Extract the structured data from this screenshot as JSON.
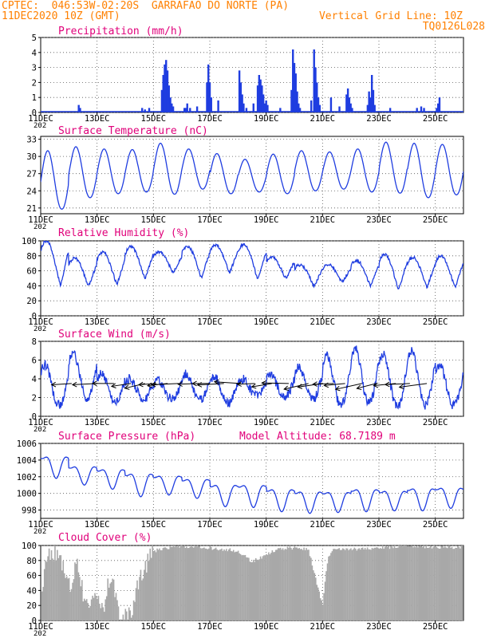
{
  "header": {
    "line1": "CPTEC:  046:53W-02:20S  GARRAFAO DO NORTE (PA)",
    "line2_left": "11DEC2020 10Z (GMT)",
    "line2_right": "Vertical Grid Line: 10Z",
    "line3_right": "TQ0126L028"
  },
  "colors": {
    "header": "#ff8000",
    "title": "#e0007a",
    "series": "#1f3de0",
    "bars": "#1f3de0",
    "cloud": "#a8a8a8",
    "grid": "#555555"
  },
  "x_axis": {
    "day_ticks": [
      "11DEC",
      "13DEC",
      "15DEC",
      "17DEC",
      "19DEC",
      "21DEC",
      "23DEC",
      "25DEC"
    ],
    "year_label": "202",
    "span_days": 15
  },
  "chart_data": [
    {
      "id": "precip",
      "type": "bar",
      "title": "Precipitation (mm/h)",
      "ylim": [
        0,
        5
      ],
      "yticks": [
        "0",
        "1",
        "2",
        "3",
        "4",
        "5"
      ],
      "x_unit": "days since 11DEC 10Z",
      "x": [
        1.35,
        1.4,
        3.6,
        3.7,
        3.85,
        4.3,
        4.35,
        4.4,
        4.45,
        4.5,
        4.55,
        4.6,
        4.65,
        4.7,
        5.1,
        5.15,
        5.2,
        5.3,
        5.55,
        5.9,
        5.95,
        6.0,
        6.05,
        6.3,
        7.05,
        7.1,
        7.15,
        7.2,
        7.3,
        7.55,
        7.7,
        7.75,
        7.8,
        7.85,
        7.9,
        7.95,
        8.0,
        8.05,
        8.5,
        8.9,
        8.95,
        9.0,
        9.05,
        9.1,
        9.15,
        9.2,
        9.6,
        9.7,
        9.75,
        9.8,
        9.85,
        9.9,
        10.3,
        10.6,
        10.85,
        10.9,
        10.95,
        11.0,
        11.05,
        11.6,
        11.65,
        11.7,
        11.75,
        11.8,
        11.85,
        12.4,
        13.35,
        13.5,
        13.6,
        14.05,
        14.1,
        14.15
      ],
      "values": [
        0.5,
        0.3,
        0.3,
        0.2,
        0.3,
        1.5,
        2.5,
        3.2,
        3.5,
        2.8,
        1.8,
        1.0,
        0.6,
        0.4,
        0.3,
        0.3,
        0.6,
        0.3,
        0.4,
        2.0,
        3.2,
        2.0,
        1.0,
        0.8,
        2.8,
        2.0,
        1.2,
        0.6,
        0.3,
        0.6,
        1.8,
        2.5,
        2.2,
        1.8,
        1.2,
        0.6,
        0.8,
        0.5,
        0.3,
        1.5,
        4.2,
        3.3,
        2.6,
        1.4,
        0.6,
        0.3,
        0.8,
        4.2,
        3.0,
        2.0,
        1.0,
        0.5,
        1.0,
        0.4,
        1.2,
        1.6,
        1.0,
        0.6,
        0.3,
        0.5,
        1.4,
        1.0,
        2.5,
        1.5,
        0.5,
        0.3,
        0.3,
        0.4,
        0.3,
        0.3,
        0.6,
        1.0
      ]
    },
    {
      "id": "temp",
      "type": "line",
      "title": "Surface Temperature (nC)",
      "ylim": [
        20,
        33.5
      ],
      "ytick_values": [
        21,
        24,
        27,
        30,
        33
      ],
      "yticks": [
        "21",
        "24",
        "27",
        "30",
        "33"
      ],
      "daily_low": [
        20.8,
        22.8,
        23.5,
        23.8,
        23.4,
        24.3,
        23.5,
        23.8,
        23.5,
        24.0,
        24.3,
        23.8,
        23.6,
        22.8,
        23.3
      ],
      "daily_high": [
        31.0,
        31.7,
        31.3,
        31.2,
        32.3,
        31.3,
        30.5,
        29.5,
        30.4,
        31.0,
        30.8,
        31.3,
        32.5,
        32.3,
        32.1
      ]
    },
    {
      "id": "rh",
      "type": "line",
      "title": "Relative Humidity (%)",
      "ylim": [
        0,
        100
      ],
      "ytick_values": [
        0,
        20,
        40,
        60,
        80,
        100
      ],
      "yticks": [
        "0",
        "20",
        "40",
        "60",
        "80",
        "100"
      ],
      "daily_high": [
        100,
        77,
        85,
        92,
        85,
        93,
        94,
        95,
        78,
        68,
        68,
        74,
        82,
        78,
        80
      ],
      "daily_low": [
        41,
        40,
        42,
        50,
        58,
        51,
        58,
        50,
        50,
        40,
        45,
        40,
        35,
        38,
        38
      ]
    },
    {
      "id": "wind",
      "type": "line",
      "title": "Surface Wind (m/s)",
      "ylim": [
        0,
        8
      ],
      "ytick_values": [
        0,
        2,
        4,
        6,
        8
      ],
      "yticks": [
        "0",
        "2",
        "4",
        "6",
        "8"
      ],
      "daily_high": [
        5.5,
        6.8,
        4.5,
        4.0,
        3.8,
        4.5,
        4.3,
        4.0,
        4.5,
        5.2,
        6.6,
        7.2,
        6.6,
        7.0,
        5.5
      ],
      "daily_low": [
        1.2,
        1.8,
        1.6,
        1.8,
        1.9,
        1.8,
        1.4,
        2.2,
        2.0,
        1.8,
        1.2,
        1.4,
        1.0,
        1.2,
        1.2
      ],
      "arrows_x": [
        1.1,
        2.0,
        2.6,
        3.2,
        3.7,
        4.1,
        4.5,
        4.9,
        5.6,
        6.0,
        6.5,
        7.1,
        7.6,
        8.2,
        8.8,
        9.5,
        10.0,
        10.4,
        10.8,
        11.4,
        11.9,
        12.6,
        13.1,
        13.7
      ]
    },
    {
      "id": "pres",
      "type": "line",
      "title": "Surface Pressure (hPa)",
      "annotation": "Model Altitude: 68.7189 m",
      "ylim": [
        997,
        1006
      ],
      "ytick_values": [
        998,
        1000,
        1002,
        1004,
        1006
      ],
      "yticks": [
        "998",
        "1000",
        "1002",
        "1004",
        "1006"
      ],
      "daily_high": [
        1005.2,
        1003.9,
        1003.6,
        1003.2,
        1002.8,
        1002.4,
        1001.8,
        1001.8,
        1001.3,
        1001.0,
        1000.9,
        1001.3,
        1001.0,
        1001.4,
        1001.4
      ],
      "daily_low": [
        1001.8,
        1001.0,
        1000.5,
        999.6,
        999.8,
        999.4,
        998.4,
        998.3,
        997.8,
        997.6,
        997.7,
        997.8,
        997.9,
        997.9,
        998.2
      ]
    },
    {
      "id": "cloud",
      "type": "area",
      "title": "Cloud Cover (%)",
      "ylim": [
        0,
        100
      ],
      "ytick_values": [
        0,
        20,
        40,
        60,
        80,
        100
      ],
      "yticks": [
        "0",
        "20",
        "40",
        "60",
        "80",
        "100"
      ],
      "profile_x": [
        0,
        0.2,
        0.5,
        0.8,
        1.0,
        1.3,
        1.6,
        1.9,
        2.2,
        2.5,
        2.8,
        3.0,
        3.2,
        3.5,
        4.0,
        4.4,
        5.0,
        6.0,
        7.0,
        7.5,
        8.0,
        8.5,
        9.0,
        9.5,
        10.0,
        10.2,
        10.4,
        11.0,
        12.0,
        13.0,
        14.0,
        15.0
      ],
      "profile_y": [
        8,
        88,
        92,
        70,
        45,
        75,
        20,
        40,
        10,
        65,
        2,
        5,
        10,
        55,
        92,
        97,
        99,
        97,
        93,
        78,
        88,
        96,
        97,
        95,
        20,
        85,
        94,
        95,
        97,
        99,
        98,
        98
      ]
    }
  ]
}
